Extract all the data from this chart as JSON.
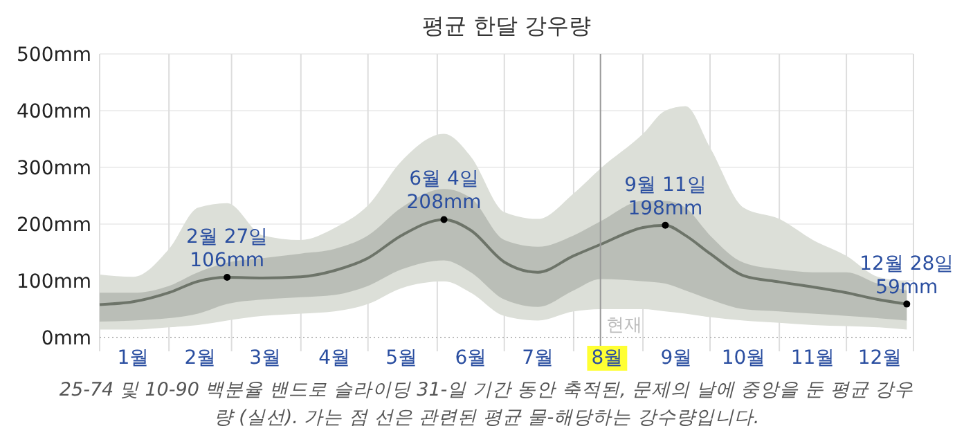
{
  "chart_data": {
    "type": "line",
    "title": "평균 한달 강우량",
    "x": [
      "--01-01",
      "--01-16",
      "--02-01",
      "--02-14",
      "--02-27",
      "--03-15",
      "--04-01",
      "--04-16",
      "--05-01",
      "--05-16",
      "--06-04",
      "--06-16",
      "--07-01",
      "--07-16",
      "--08-01",
      "--08-13",
      "--09-01",
      "--09-11",
      "--09-20",
      "--10-01",
      "--10-16",
      "--11-01",
      "--11-16",
      "--12-01",
      "--12-15",
      "--12-28"
    ],
    "xlim": [
      "--01-01",
      "--12-31"
    ],
    "xticks": [
      {
        "value": "--01-01",
        "label": null
      },
      {
        "value": "--01-16",
        "label": "1월"
      },
      {
        "value": "--02-01",
        "label": null
      },
      {
        "value": "--02-15",
        "label": "2월"
      },
      {
        "value": "--03-01",
        "label": null
      },
      {
        "value": "--03-16",
        "label": "3월"
      },
      {
        "value": "--04-01",
        "label": null
      },
      {
        "value": "--04-16",
        "label": "4월"
      },
      {
        "value": "--05-01",
        "label": null
      },
      {
        "value": "--05-16",
        "label": "5월"
      },
      {
        "value": "--06-01",
        "label": null
      },
      {
        "value": "--06-16",
        "label": "6월"
      },
      {
        "value": "--07-01",
        "label": null
      },
      {
        "value": "--07-16",
        "label": "7월"
      },
      {
        "value": "--08-01",
        "label": null
      },
      {
        "value": "--08-16",
        "label": "8월"
      },
      {
        "value": "--09-01",
        "label": null
      },
      {
        "value": "--09-16",
        "label": "9월"
      },
      {
        "value": "--10-01",
        "label": null
      },
      {
        "value": "--10-16",
        "label": "10월"
      },
      {
        "value": "--11-01",
        "label": null
      },
      {
        "value": "--11-16",
        "label": "11월"
      },
      {
        "value": "--12-01",
        "label": null
      },
      {
        "value": "--12-16",
        "label": "12월"
      },
      {
        "value": "--12-31",
        "label": null
      }
    ],
    "ylim": [
      0,
      500
    ],
    "yticks": [
      {
        "value": 0,
        "label": "0mm"
      },
      {
        "value": 100,
        "label": "100mm"
      },
      {
        "value": 200,
        "label": "200mm"
      },
      {
        "value": 300,
        "label": "300mm"
      },
      {
        "value": 400,
        "label": "400mm"
      },
      {
        "value": 500,
        "label": "500mm"
      }
    ],
    "grid": true,
    "marker": "none",
    "line_style": "solid",
    "series": [
      {
        "type": "area",
        "color": "#dcdfd8",
        "values": [
          null,
          null,
          null,
          null,
          null,
          null,
          null,
          null,
          null,
          null,
          null,
          null,
          null,
          null,
          null,
          null,
          null,
          null,
          null,
          null,
          null,
          null,
          null,
          null,
          null,
          null
        ],
        "upper": [
          111,
          107,
          156,
          229,
          237,
          180,
          172,
          193,
          233,
          311,
          359,
          319,
          221,
          209,
          254,
          298,
          359,
          400,
          408,
          335,
          229,
          209,
          172,
          144,
          107,
          99
        ],
        "lower": [
          14,
          14,
          18,
          22,
          30,
          38,
          42,
          46,
          59,
          87,
          99,
          79,
          38,
          30,
          46,
          50,
          50,
          46,
          42,
          36,
          30,
          26,
          22,
          20,
          18,
          14
        ]
      },
      {
        "color": "#6d7469",
        "values": [
          58,
          63,
          79,
          99,
          106,
          105,
          107,
          118,
          140,
          180,
          208,
          189,
          133,
          115,
          144,
          164,
          194,
          198,
          180,
          148,
          109,
          98,
          89,
          79,
          67,
          59
        ],
        "upper": [
          79,
          79,
          91,
          115,
          132,
          140,
          148,
          156,
          180,
          229,
          262,
          246,
          172,
          160,
          180,
          205,
          241,
          241,
          229,
          180,
          132,
          120,
          115,
          115,
          95,
          83
        ],
        "lower": [
          28,
          30,
          34,
          42,
          59,
          67,
          71,
          75,
          91,
          120,
          136,
          115,
          67,
          54,
          83,
          103,
          99,
          95,
          83,
          67,
          50,
          46,
          42,
          38,
          34,
          30
        ]
      }
    ],
    "ref_lines": [
      {
        "axis": "x",
        "value": "--08-13",
        "label": "현재",
        "color": "#999999"
      }
    ],
    "annotations": [
      {
        "text": "2월 27일\n106mm",
        "x": "--02-27",
        "y": 106
      },
      {
        "text": "6월 4일\n208mm",
        "x": "--06-04",
        "y": 208
      },
      {
        "text": "9월 11일\n198mm",
        "x": "--09-11",
        "y": 198
      },
      {
        "text": "12월 28일\n59mm",
        "x": "--12-28",
        "y": 59
      },
      "25-74 및 10-90 백분율 밴드로 슬라이딩 31-일 기간 동안 축적된, 문제의 날에 중앙을 둔 평균 강우량 (실선). 가는 점 선은 관련된 평균 물-해당하는 강수량입니다."
    ]
  }
}
